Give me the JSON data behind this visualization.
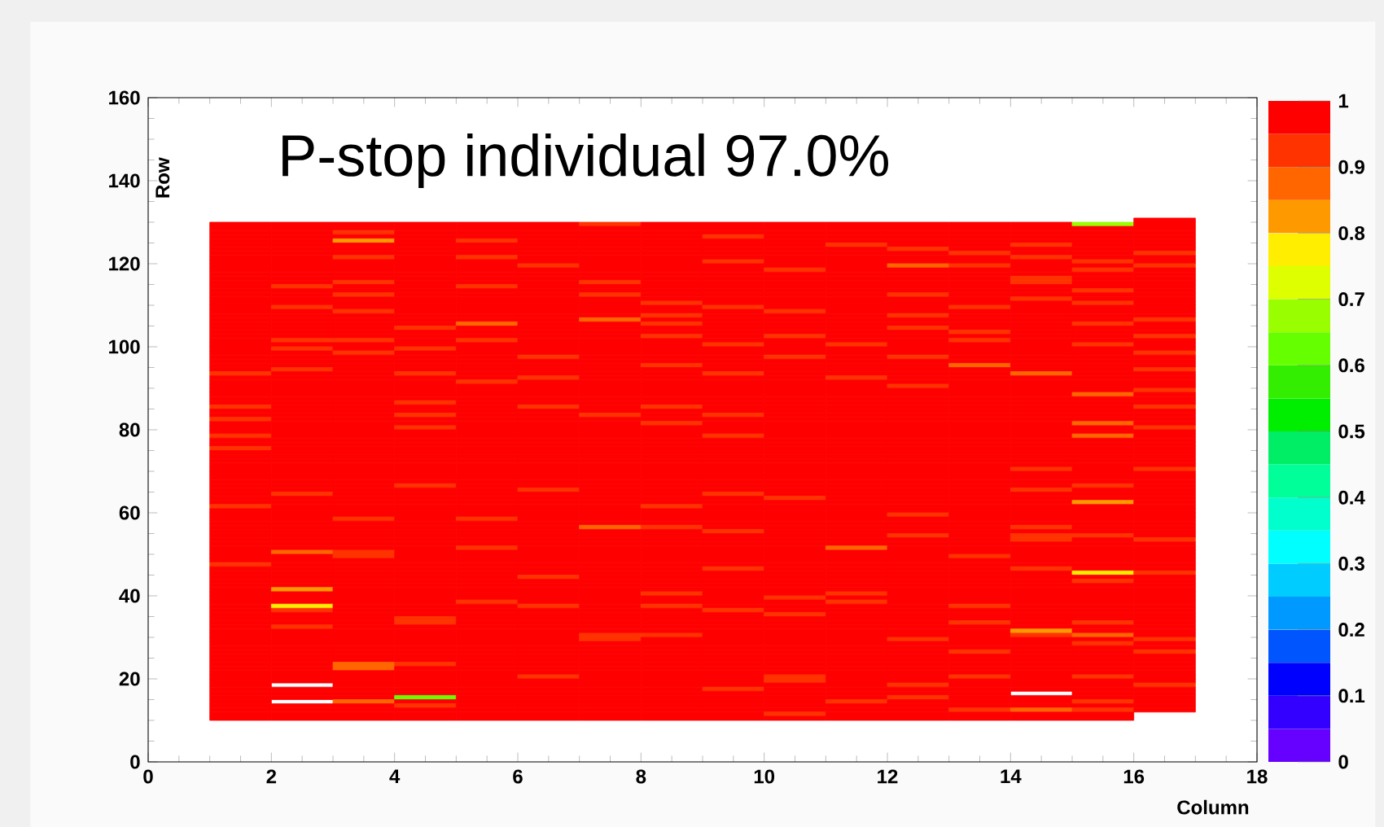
{
  "chart_data": {
    "type": "heatmap",
    "title": "P-stop individual    97.0%",
    "xlabel": "Column",
    "ylabel": "Row",
    "xlim": [
      0,
      18
    ],
    "xticks": [
      0,
      2,
      4,
      6,
      8,
      10,
      12,
      14,
      16,
      18
    ],
    "ylim": [
      0,
      160
    ],
    "yticks": [
      0,
      20,
      40,
      60,
      80,
      100,
      120,
      140,
      160
    ],
    "clim": [
      0,
      1
    ],
    "cticks": [
      0,
      0.1,
      0.2,
      0.3,
      0.4,
      0.5,
      0.6,
      0.7,
      0.8,
      0.9,
      1
    ],
    "colors": [
      "#6600ff",
      "#3300ff",
      "#0000ff",
      "#0055ff",
      "#0099ff",
      "#00ccff",
      "#00ffff",
      "#00ffcc",
      "#00ff99",
      "#00ee66",
      "#00ee00",
      "#33ee00",
      "#66ff00",
      "#99ff00",
      "#ddff00",
      "#ffee00",
      "#ff9900",
      "#ff6600",
      "#ff3300",
      "#ff0000"
    ],
    "x": [
      1.5,
      2.5,
      3.5,
      4.5,
      5.5,
      6.5,
      7.5,
      8.5,
      9.5,
      10.5,
      11.5,
      12.5,
      13.5,
      14.5,
      15.5,
      16.5
    ],
    "y": [
      130.5,
      129.5,
      128.5,
      127.5,
      126.5,
      125.5,
      124.5,
      123.5,
      122.5,
      121.5,
      120.5,
      119.5,
      118.5,
      117.5,
      116.5,
      115.5,
      114.5,
      113.5,
      112.5,
      111.5,
      110.5,
      109.5,
      108.5,
      107.5,
      106.5,
      105.5,
      104.5,
      103.5,
      102.5,
      101.5,
      100.5,
      99.5,
      98.5,
      97.5,
      96.5,
      95.5,
      94.5,
      93.5,
      92.5,
      91.5,
      90.5,
      89.5,
      88.5,
      87.5,
      86.5,
      85.5,
      84.5,
      83.5,
      82.5,
      81.5,
      80.5,
      79.5,
      78.5,
      77.5,
      76.5,
      75.5,
      74.5,
      73.5,
      72.5,
      71.5,
      70.5,
      69.5,
      68.5,
      67.5,
      66.5,
      65.5,
      64.5,
      63.5,
      62.5,
      61.5,
      60.5,
      59.5,
      58.5,
      57.5,
      56.5,
      55.5,
      54.5,
      53.5,
      52.5,
      51.5,
      50.5,
      49.5,
      48.5,
      47.5,
      46.5,
      45.5,
      44.5,
      43.5,
      42.5,
      41.5,
      40.5,
      39.5,
      38.5,
      37.5,
      36.5,
      35.5,
      34.5,
      33.5,
      32.5,
      31.5,
      30.5,
      29.5,
      28.5,
      27.5,
      26.5,
      25.5,
      24.5,
      23.5,
      22.5,
      21.5,
      20.5,
      19.5,
      18.5,
      17.5,
      16.5,
      15.5,
      14.5,
      13.5,
      12.5,
      11.5,
      10.5
    ],
    "cells": [
      [
        null,
        null,
        null,
        null,
        null,
        null,
        null,
        null,
        null,
        null,
        null,
        null,
        null,
        null,
        null,
        1
      ],
      [
        1,
        1,
        1,
        1,
        1,
        1,
        0.93,
        1,
        1,
        1,
        1,
        1,
        1,
        1,
        0.68,
        1
      ],
      [
        1,
        1,
        1,
        1,
        1,
        1,
        1,
        1,
        1,
        1,
        1,
        1,
        1,
        1,
        1,
        1
      ],
      [
        1,
        1,
        0.93,
        1,
        1,
        1,
        1,
        1,
        1,
        1,
        1,
        1,
        1,
        1,
        1,
        1
      ],
      [
        1,
        1,
        1,
        1,
        1,
        1,
        1,
        1,
        0.93,
        1,
        1,
        1,
        1,
        1,
        1,
        1
      ],
      [
        1,
        1,
        0.83,
        1,
        0.93,
        1,
        1,
        1,
        1,
        1,
        1,
        1,
        1,
        1,
        1,
        1
      ],
      [
        1,
        1,
        1,
        1,
        1,
        1,
        1,
        1,
        1,
        1,
        0.93,
        1,
        1,
        0.93,
        1,
        1
      ],
      [
        1,
        1,
        1,
        1,
        1,
        1,
        1,
        1,
        1,
        1,
        1,
        0.93,
        1,
        1,
        1,
        1
      ],
      [
        1,
        1,
        1,
        1,
        1,
        1,
        1,
        1,
        1,
        1,
        1,
        1,
        0.93,
        1,
        1,
        0.93
      ],
      [
        1,
        1,
        0.93,
        1,
        0.93,
        1,
        1,
        1,
        1,
        1,
        1,
        1,
        1,
        0.93,
        1,
        1
      ],
      [
        1,
        1,
        1,
        1,
        1,
        1,
        1,
        1,
        0.93,
        1,
        1,
        1,
        1,
        1,
        0.93,
        1
      ],
      [
        1,
        1,
        1,
        1,
        1,
        0.93,
        1,
        1,
        1,
        1,
        1,
        0.87,
        0.93,
        1,
        1,
        0.93
      ],
      [
        1,
        1,
        1,
        1,
        1,
        1,
        1,
        1,
        1,
        0.93,
        1,
        1,
        1,
        1,
        0.93,
        1
      ],
      [
        1,
        1,
        1,
        1,
        1,
        1,
        1,
        1,
        1,
        1,
        1,
        1,
        1,
        1,
        1,
        1
      ],
      [
        1,
        1,
        1,
        1,
        1,
        1,
        1,
        1,
        1,
        1,
        1,
        1,
        1,
        0.93,
        1,
        1
      ],
      [
        1,
        1,
        0.93,
        1,
        1,
        1,
        0.93,
        1,
        1,
        1,
        1,
        1,
        1,
        0.93,
        1,
        1
      ],
      [
        1,
        0.93,
        1,
        1,
        0.93,
        1,
        1,
        1,
        1,
        1,
        1,
        1,
        1,
        1,
        1,
        1
      ],
      [
        1,
        1,
        1,
        1,
        1,
        1,
        1,
        1,
        1,
        1,
        1,
        1,
        1,
        1,
        0.93,
        1
      ],
      [
        1,
        1,
        0.93,
        1,
        1,
        1,
        0.93,
        1,
        1,
        1,
        1,
        0.93,
        1,
        1,
        1,
        1
      ],
      [
        1,
        1,
        1,
        1,
        1,
        1,
        1,
        1,
        1,
        1,
        1,
        1,
        1,
        0.93,
        1,
        1
      ],
      [
        1,
        1,
        1,
        1,
        1,
        1,
        1,
        0.93,
        1,
        1,
        1,
        1,
        1,
        1,
        0.93,
        1
      ],
      [
        1,
        0.93,
        1,
        1,
        1,
        1,
        1,
        1,
        0.93,
        1,
        1,
        1,
        0.93,
        1,
        1,
        1
      ],
      [
        1,
        1,
        0.93,
        1,
        1,
        1,
        1,
        1,
        1,
        0.93,
        1,
        1,
        1,
        1,
        1,
        1
      ],
      [
        1,
        1,
        1,
        1,
        1,
        1,
        1,
        0.93,
        1,
        1,
        1,
        0.93,
        1,
        1,
        1,
        1
      ],
      [
        1,
        1,
        1,
        1,
        1,
        1,
        0.85,
        1,
        1,
        1,
        1,
        1,
        1,
        1,
        1,
        0.93
      ],
      [
        1,
        1,
        1,
        1,
        0.87,
        1,
        1,
        0.93,
        1,
        1,
        1,
        1,
        1,
        1,
        0.93,
        1
      ],
      [
        1,
        1,
        1,
        0.93,
        1,
        1,
        1,
        1,
        1,
        1,
        1,
        0.93,
        1,
        1,
        1,
        1
      ],
      [
        1,
        1,
        1,
        1,
        1,
        1,
        1,
        1,
        1,
        1,
        1,
        1,
        0.93,
        1,
        1,
        1
      ],
      [
        1,
        1,
        1,
        1,
        1,
        1,
        1,
        0.93,
        1,
        0.93,
        1,
        1,
        1,
        1,
        1,
        0.93
      ],
      [
        1,
        0.93,
        0.93,
        1,
        0.93,
        1,
        1,
        1,
        1,
        1,
        1,
        1,
        0.93,
        1,
        1,
        1
      ],
      [
        1,
        1,
        1,
        1,
        1,
        1,
        1,
        1,
        0.93,
        1,
        0.93,
        1,
        1,
        1,
        0.93,
        1
      ],
      [
        1,
        0.93,
        1,
        0.93,
        1,
        1,
        1,
        1,
        1,
        1,
        1,
        1,
        1,
        1,
        1,
        1
      ],
      [
        1,
        1,
        0.93,
        1,
        1,
        1,
        1,
        1,
        1,
        1,
        1,
        1,
        1,
        1,
        1,
        0.93
      ],
      [
        1,
        1,
        1,
        1,
        1,
        0.93,
        1,
        1,
        1,
        0.93,
        1,
        0.93,
        1,
        1,
        1,
        1
      ],
      [
        1,
        1,
        1,
        1,
        1,
        1,
        1,
        1,
        1,
        1,
        1,
        1,
        1,
        1,
        1,
        1
      ],
      [
        1,
        1,
        1,
        1,
        1,
        1,
        1,
        0.93,
        1,
        1,
        1,
        1,
        0.87,
        1,
        1,
        1
      ],
      [
        1,
        0.93,
        1,
        1,
        1,
        1,
        1,
        1,
        1,
        1,
        1,
        1,
        1,
        1,
        1,
        0.93
      ],
      [
        0.93,
        1,
        1,
        0.93,
        1,
        1,
        1,
        1,
        0.93,
        1,
        1,
        1,
        1,
        0.85,
        1,
        1
      ],
      [
        1,
        1,
        1,
        1,
        1,
        0.93,
        1,
        1,
        1,
        1,
        0.93,
        1,
        1,
        1,
        1,
        1
      ],
      [
        1,
        1,
        1,
        1,
        0.93,
        1,
        1,
        1,
        1,
        1,
        1,
        1,
        1,
        1,
        1,
        1
      ],
      [
        1,
        1,
        1,
        1,
        1,
        1,
        1,
        1,
        1,
        1,
        1,
        0.93,
        1,
        1,
        1,
        1
      ],
      [
        1,
        1,
        1,
        1,
        1,
        1,
        1,
        1,
        1,
        1,
        1,
        1,
        1,
        1,
        1,
        0.93
      ],
      [
        1,
        1,
        1,
        1,
        1,
        1,
        1,
        1,
        1,
        1,
        1,
        1,
        1,
        1,
        0.87,
        1
      ],
      [
        1,
        1,
        1,
        1,
        1,
        1,
        1,
        1,
        1,
        1,
        1,
        1,
        1,
        1,
        1,
        1
      ],
      [
        1,
        1,
        1,
        0.93,
        1,
        1,
        1,
        1,
        1,
        1,
        1,
        1,
        1,
        1,
        1,
        1
      ],
      [
        0.93,
        1,
        1,
        1,
        1,
        0.93,
        1,
        0.93,
        1,
        1,
        1,
        1,
        1,
        1,
        1,
        0.93
      ],
      [
        1,
        1,
        1,
        1,
        1,
        1,
        1,
        1,
        1,
        1,
        1,
        1,
        1,
        1,
        1,
        1
      ],
      [
        1,
        1,
        1,
        0.93,
        1,
        1,
        0.93,
        1,
        0.93,
        1,
        1,
        1,
        1,
        1,
        1,
        1
      ],
      [
        0.93,
        1,
        1,
        1,
        1,
        1,
        1,
        1,
        1,
        1,
        1,
        1,
        1,
        1,
        1,
        1
      ],
      [
        1,
        1,
        1,
        1,
        1,
        1,
        1,
        0.93,
        1,
        1,
        1,
        1,
        1,
        1,
        0.85,
        1
      ],
      [
        1,
        1,
        1,
        0.93,
        1,
        1,
        1,
        1,
        1,
        1,
        1,
        1,
        1,
        1,
        1,
        0.93
      ],
      [
        1,
        1,
        1,
        1,
        1,
        1,
        1,
        1,
        1,
        1,
        1,
        1,
        1,
        1,
        1,
        1
      ],
      [
        0.93,
        1,
        1,
        1,
        1,
        1,
        1,
        1,
        0.93,
        1,
        1,
        1,
        1,
        1,
        0.87,
        1
      ],
      [
        1,
        1,
        1,
        1,
        1,
        1,
        1,
        1,
        1,
        1,
        1,
        1,
        1,
        1,
        1,
        1
      ],
      [
        1,
        1,
        1,
        1,
        1,
        1,
        1,
        1,
        1,
        1,
        1,
        1,
        1,
        1,
        1,
        1
      ],
      [
        0.93,
        1,
        1,
        1,
        1,
        1,
        1,
        1,
        1,
        1,
        1,
        1,
        1,
        1,
        1,
        1
      ],
      [
        1,
        1,
        1,
        1,
        1,
        1,
        1,
        1,
        1,
        1,
        1,
        1,
        1,
        1,
        1,
        1
      ],
      [
        1,
        1,
        1,
        1,
        1,
        1,
        1,
        1,
        1,
        1,
        1,
        1,
        1,
        1,
        1,
        1
      ],
      [
        1,
        1,
        1,
        1,
        1,
        1,
        1,
        1,
        1,
        1,
        1,
        1,
        1,
        1,
        1,
        1
      ],
      [
        1,
        1,
        1,
        1,
        1,
        1,
        1,
        1,
        1,
        1,
        1,
        1,
        1,
        1,
        1,
        1
      ],
      [
        1,
        1,
        1,
        1,
        1,
        1,
        1,
        1,
        1,
        1,
        1,
        1,
        1,
        0.93,
        1,
        0.93
      ],
      [
        1,
        1,
        1,
        1,
        1,
        1,
        1,
        1,
        1,
        1,
        1,
        1,
        1,
        1,
        1,
        1
      ],
      [
        1,
        1,
        1,
        1,
        1,
        1,
        1,
        1,
        1,
        1,
        1,
        1,
        1,
        1,
        1,
        1
      ],
      [
        1,
        1,
        1,
        1,
        1,
        1,
        1,
        1,
        1,
        1,
        1,
        1,
        1,
        1,
        1,
        1
      ],
      [
        1,
        1,
        1,
        0.93,
        1,
        1,
        1,
        1,
        1,
        1,
        1,
        1,
        1,
        1,
        0.93,
        1
      ],
      [
        1,
        1,
        1,
        1,
        1,
        0.93,
        1,
        1,
        1,
        1,
        1,
        1,
        1,
        0.93,
        1,
        1
      ],
      [
        1,
        0.93,
        1,
        1,
        1,
        1,
        1,
        1,
        0.93,
        1,
        1,
        1,
        1,
        1,
        1,
        1
      ],
      [
        1,
        1,
        1,
        1,
        1,
        1,
        1,
        1,
        1,
        0.93,
        1,
        1,
        1,
        1,
        1,
        1
      ],
      [
        1,
        1,
        1,
        1,
        1,
        1,
        1,
        1,
        1,
        1,
        1,
        1,
        1,
        1,
        0.83,
        1
      ],
      [
        0.93,
        1,
        1,
        1,
        1,
        1,
        1,
        0.93,
        1,
        1,
        1,
        1,
        1,
        1,
        1,
        1
      ],
      [
        1,
        1,
        1,
        1,
        1,
        1,
        1,
        1,
        1,
        1,
        1,
        1,
        1,
        1,
        1,
        1
      ],
      [
        1,
        1,
        1,
        1,
        1,
        1,
        1,
        1,
        1,
        1,
        1,
        0.93,
        1,
        1,
        1,
        1
      ],
      [
        1,
        1,
        0.93,
        1,
        0.93,
        1,
        1,
        1,
        1,
        1,
        1,
        1,
        1,
        1,
        1,
        1
      ],
      [
        1,
        1,
        1,
        1,
        1,
        1,
        1,
        1,
        1,
        1,
        1,
        1,
        1,
        1,
        1,
        1
      ],
      [
        1,
        1,
        1,
        1,
        1,
        1,
        0.87,
        0.93,
        1,
        1,
        1,
        1,
        1,
        0.93,
        1,
        1
      ],
      [
        1,
        1,
        1,
        1,
        1,
        1,
        1,
        1,
        0.93,
        1,
        1,
        1,
        1,
        1,
        1,
        1
      ],
      [
        1,
        1,
        1,
        1,
        1,
        1,
        1,
        1,
        1,
        1,
        1,
        0.93,
        1,
        0.93,
        0.93,
        1
      ],
      [
        1,
        1,
        1,
        1,
        1,
        1,
        1,
        1,
        1,
        1,
        1,
        1,
        1,
        0.93,
        1,
        0.93
      ],
      [
        1,
        1,
        1,
        1,
        1,
        1,
        1,
        1,
        1,
        1,
        1,
        1,
        1,
        1,
        1,
        1
      ],
      [
        1,
        1,
        1,
        1,
        0.93,
        1,
        1,
        1,
        1,
        1,
        0.87,
        1,
        1,
        1,
        1,
        1
      ],
      [
        1,
        0.85,
        0.93,
        1,
        1,
        1,
        1,
        1,
        1,
        1,
        1,
        1,
        1,
        1,
        1,
        1
      ],
      [
        1,
        1,
        0.93,
        1,
        1,
        1,
        1,
        1,
        1,
        1,
        1,
        1,
        0.93,
        1,
        1,
        1
      ],
      [
        1,
        1,
        1,
        1,
        1,
        1,
        1,
        1,
        1,
        1,
        1,
        1,
        1,
        1,
        1,
        1
      ],
      [
        0.93,
        1,
        1,
        1,
        1,
        1,
        1,
        1,
        1,
        1,
        1,
        1,
        1,
        1,
        1,
        1
      ],
      [
        1,
        1,
        1,
        1,
        1,
        1,
        1,
        1,
        0.93,
        1,
        1,
        1,
        1,
        0.93,
        1,
        1
      ],
      [
        1,
        1,
        1,
        1,
        1,
        1,
        1,
        1,
        1,
        1,
        1,
        1,
        1,
        1,
        0.78,
        0.93
      ],
      [
        1,
        1,
        1,
        1,
        1,
        0.93,
        1,
        1,
        1,
        1,
        1,
        1,
        1,
        1,
        1,
        1
      ],
      [
        1,
        1,
        1,
        1,
        1,
        1,
        1,
        1,
        1,
        1,
        1,
        1,
        1,
        1,
        0.93,
        1
      ],
      [
        1,
        1,
        1,
        1,
        1,
        1,
        1,
        1,
        1,
        1,
        1,
        1,
        1,
        1,
        1,
        1
      ],
      [
        1,
        0.8,
        1,
        1,
        1,
        1,
        1,
        1,
        1,
        1,
        1,
        1,
        1,
        1,
        1,
        1
      ],
      [
        1,
        1,
        1,
        1,
        1,
        1,
        1,
        0.93,
        1,
        1,
        0.93,
        1,
        1,
        1,
        1,
        1
      ],
      [
        1,
        1,
        1,
        1,
        1,
        1,
        1,
        1,
        1,
        0.93,
        1,
        1,
        1,
        1,
        1,
        1
      ],
      [
        1,
        1,
        1,
        1,
        0.93,
        1,
        1,
        1,
        1,
        1,
        0.93,
        1,
        1,
        1,
        1,
        1
      ],
      [
        1,
        0.78,
        1,
        1,
        1,
        0.93,
        1,
        0.93,
        1,
        1,
        1,
        1,
        0.93,
        1,
        1,
        1
      ],
      [
        1,
        0.93,
        1,
        1,
        1,
        1,
        1,
        1,
        0.93,
        1,
        1,
        1,
        1,
        1,
        1,
        1
      ],
      [
        1,
        1,
        1,
        1,
        1,
        1,
        1,
        1,
        1,
        0.93,
        1,
        1,
        1,
        1,
        1,
        1
      ],
      [
        1,
        1,
        1,
        0.93,
        1,
        1,
        1,
        1,
        1,
        1,
        1,
        1,
        1,
        1,
        1,
        1
      ],
      [
        1,
        1,
        1,
        0.93,
        1,
        1,
        1,
        1,
        1,
        1,
        1,
        1,
        0.93,
        1,
        0.93,
        1
      ],
      [
        1,
        0.93,
        1,
        1,
        1,
        1,
        1,
        1,
        1,
        1,
        1,
        1,
        1,
        1,
        1,
        1
      ],
      [
        1,
        1,
        1,
        1,
        1,
        1,
        1,
        1,
        1,
        1,
        1,
        1,
        1,
        0.83,
        1,
        1
      ],
      [
        1,
        1,
        1,
        1,
        1,
        1,
        0.93,
        0.93,
        1,
        1,
        1,
        1,
        1,
        0.93,
        0.85,
        1
      ],
      [
        1,
        1,
        1,
        1,
        1,
        1,
        0.93,
        1,
        1,
        1,
        1,
        0.93,
        1,
        1,
        1,
        0.93
      ],
      [
        1,
        1,
        1,
        1,
        1,
        1,
        1,
        1,
        1,
        1,
        1,
        1,
        1,
        1,
        0.93,
        1
      ],
      [
        1,
        1,
        1,
        1,
        1,
        1,
        1,
        1,
        1,
        1,
        1,
        1,
        1,
        1,
        1,
        1
      ],
      [
        1,
        1,
        1,
        1,
        1,
        1,
        1,
        1,
        1,
        1,
        1,
        1,
        0.93,
        1,
        1,
        0.93
      ],
      [
        1,
        1,
        1,
        1,
        1,
        1,
        1,
        1,
        1,
        1,
        1,
        1,
        1,
        1,
        1,
        1
      ],
      [
        1,
        1,
        1,
        1,
        1,
        1,
        1,
        1,
        1,
        1,
        1,
        1,
        1,
        1,
        1,
        1
      ],
      [
        1,
        1,
        0.87,
        0.93,
        1,
        1,
        1,
        1,
        1,
        1,
        1,
        1,
        1,
        1,
        1,
        1
      ],
      [
        1,
        1,
        0.87,
        1,
        1,
        1,
        1,
        1,
        1,
        1,
        1,
        1,
        1,
        1,
        1,
        1
      ],
      [
        1,
        1,
        1,
        1,
        1,
        1,
        1,
        1,
        1,
        1,
        1,
        1,
        1,
        1,
        1,
        1
      ],
      [
        1,
        1,
        1,
        1,
        1,
        0.93,
        1,
        1,
        1,
        0.93,
        1,
        1,
        0.93,
        1,
        0.93,
        1
      ],
      [
        1,
        1,
        1,
        1,
        1,
        1,
        1,
        1,
        1,
        0.93,
        1,
        1,
        1,
        1,
        1,
        1
      ],
      [
        1,
        null,
        1,
        1,
        1,
        1,
        1,
        1,
        1,
        1,
        1,
        0.93,
        1,
        1,
        1,
        0.93
      ],
      [
        1,
        1,
        1,
        1,
        1,
        1,
        1,
        1,
        0.93,
        1,
        1,
        1,
        1,
        1,
        1,
        1
      ],
      [
        1,
        1,
        1,
        1,
        1,
        1,
        1,
        1,
        1,
        1,
        1,
        1,
        1,
        null,
        1,
        1
      ],
      [
        1,
        1,
        1,
        0.62,
        1,
        1,
        1,
        1,
        1,
        1,
        1,
        0.93,
        1,
        1,
        1,
        1
      ],
      [
        1,
        null,
        0.87,
        1,
        1,
        1,
        1,
        1,
        1,
        1,
        0.93,
        1,
        1,
        1,
        0.93,
        1
      ],
      [
        1,
        1,
        1,
        0.93,
        1,
        1,
        1,
        1,
        1,
        1,
        1,
        1,
        1,
        1,
        1,
        1
      ],
      [
        1,
        1,
        1,
        1,
        1,
        1,
        1,
        1,
        1,
        1,
        1,
        1,
        0.93,
        0.87,
        0.93,
        1
      ],
      [
        1,
        1,
        1,
        1,
        1,
        1,
        1,
        1,
        1,
        0.93,
        1,
        1,
        1,
        1,
        1,
        null
      ],
      [
        1,
        1,
        1,
        1,
        1,
        1,
        1,
        1,
        1,
        1,
        1,
        1,
        1,
        1,
        1,
        null
      ]
    ]
  }
}
